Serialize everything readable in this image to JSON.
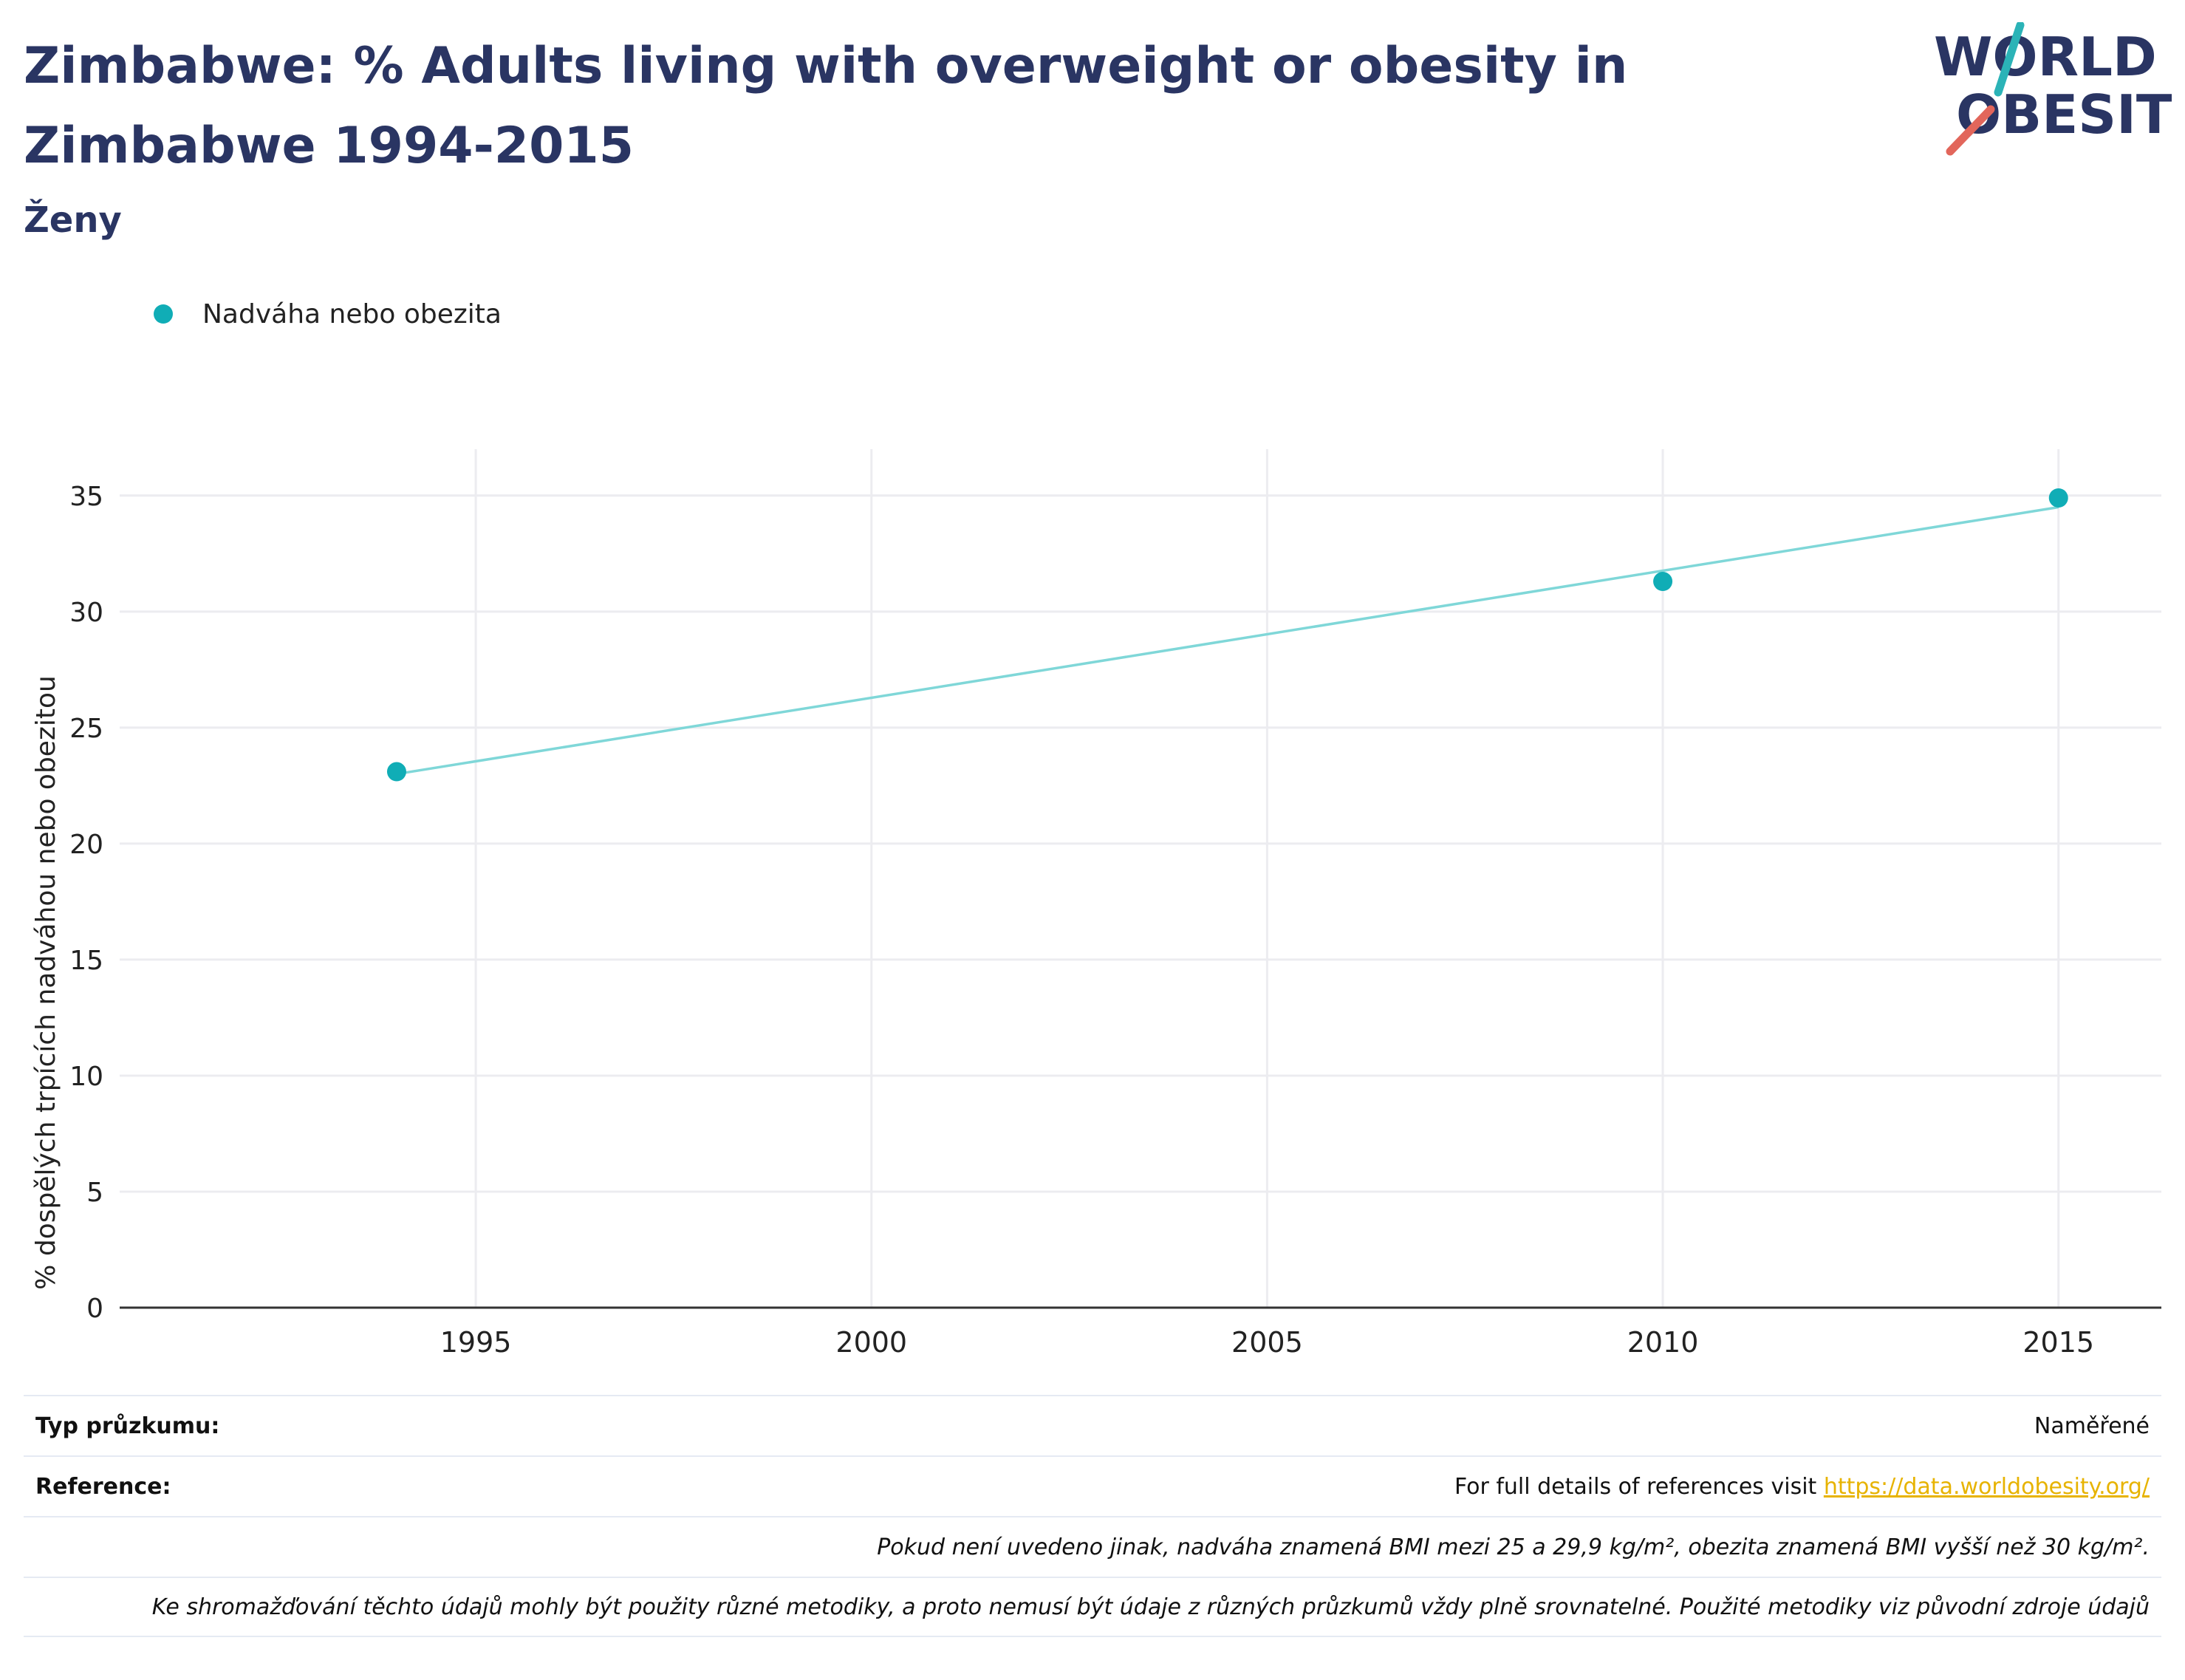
{
  "title": "Zimbabwe: % Adults living with overweight or obesity in Zimbabwe 1994-2015",
  "subtitle": "Ženy",
  "logo": {
    "line1": "WORLD",
    "line2": "OBESITY",
    "text_color": "#2a3563",
    "slash_top_color": "#2bb3b7",
    "slash_bottom_color": "#e2665b"
  },
  "colors": {
    "title": "#2a3563",
    "series": "#10adb6",
    "trend": "#7fd7d8",
    "grid": "#ececf0",
    "axis": "#333333"
  },
  "chart_data": {
    "type": "scatter",
    "legend_position": "top-left",
    "grid": true,
    "xlim": [
      1990.5,
      2016.3
    ],
    "ylim": [
      0,
      37
    ],
    "xticks": [
      1995,
      2000,
      2005,
      2010,
      2015
    ],
    "yticks": [
      0,
      5,
      10,
      15,
      20,
      25,
      30,
      35
    ],
    "ylabel": "% dospělých trpících nadváhou nebo obezitou",
    "series": [
      {
        "name": "Nadváha nebo obezita",
        "x": [
          1994,
          2010,
          2015
        ],
        "y": [
          23.1,
          31.3,
          34.9
        ]
      }
    ],
    "trendline": {
      "x": [
        1994,
        2015
      ],
      "y": [
        23.0,
        34.5
      ]
    }
  },
  "footer": {
    "survey_type_label": "Typ průzkumu:",
    "survey_type_value": "Naměřené",
    "reference_label": "Reference:",
    "reference_text": "For full details of references visit",
    "reference_link": "https://data.worldobesity.org/",
    "note1": "Pokud není uvedeno jinak, nadváha znamená BMI mezi 25 a 29,9 kg/m², obezita znamená BMI vyšší než 30 kg/m².",
    "note2": "Ke shromažďování těchto údajů mohly být použity různé metodiky, a proto nemusí být údaje z různých průzkumů vždy plně srovnatelné. Použité metodiky viz původní zdroje údajů"
  }
}
